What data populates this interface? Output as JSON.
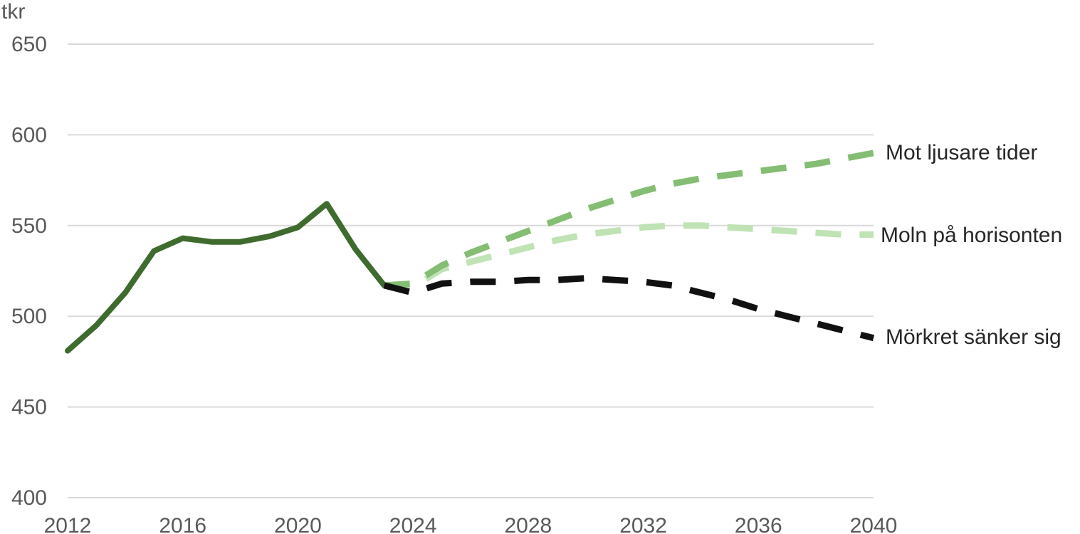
{
  "chart_data": {
    "type": "line",
    "ylabel": "tkr",
    "ylim": [
      400,
      650
    ],
    "xlim": [
      2012,
      2040
    ],
    "y_ticks": [
      "400",
      "450",
      "500",
      "550",
      "600",
      "650"
    ],
    "x_ticks": [
      "2012",
      "2016",
      "2020",
      "2024",
      "2028",
      "2032",
      "2036",
      "2040"
    ],
    "grid": true,
    "legend": "inline-right",
    "series": [
      {
        "name": "",
        "style": "solid",
        "color": "#3f6b2f",
        "x": [
          2012,
          2013,
          2014,
          2015,
          2016,
          2017,
          2018,
          2019,
          2020,
          2021,
          2022,
          2023
        ],
        "y": [
          481,
          495,
          513,
          536,
          543,
          541,
          541,
          544,
          549,
          562,
          537,
          517
        ]
      },
      {
        "name": "Mot ljusare tider",
        "style": "dashed",
        "color": "#84bd73",
        "x": [
          2023,
          2024,
          2025,
          2026,
          2027,
          2028,
          2029,
          2030,
          2031,
          2032,
          2033,
          2034,
          2035,
          2036,
          2037,
          2038,
          2039,
          2040
        ],
        "y": [
          517,
          518,
          528,
          535,
          541,
          547,
          553,
          559,
          564,
          569,
          573,
          576,
          578,
          580,
          582,
          584,
          587,
          590
        ]
      },
      {
        "name": "Moln på horisonten",
        "style": "dashed",
        "color": "#bfe3b4",
        "x": [
          2023,
          2024,
          2025,
          2026,
          2027,
          2028,
          2029,
          2030,
          2031,
          2032,
          2033,
          2034,
          2035,
          2036,
          2037,
          2038,
          2039,
          2040
        ],
        "y": [
          517,
          516,
          526,
          530,
          534,
          538,
          542,
          545,
          547,
          549,
          550,
          550,
          549,
          548,
          547,
          546,
          545,
          545
        ]
      },
      {
        "name": "Mörkret sänker sig",
        "style": "dashed",
        "color": "#111111",
        "x": [
          2023,
          2024,
          2025,
          2026,
          2027,
          2028,
          2029,
          2030,
          2031,
          2032,
          2033,
          2034,
          2035,
          2036,
          2037,
          2038,
          2039,
          2040
        ],
        "y": [
          517,
          513,
          518,
          519,
          519,
          520,
          520,
          521,
          520,
          519,
          517,
          513,
          509,
          504,
          500,
          496,
          492,
          488
        ]
      }
    ]
  }
}
